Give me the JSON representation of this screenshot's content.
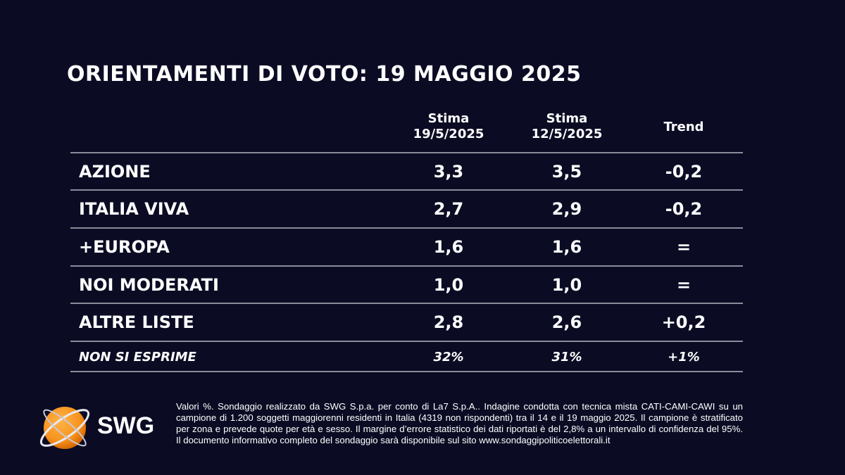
{
  "title": "ORIENTAMENTI DI VOTO: 19 MAGGIO 2025",
  "columns": [
    {
      "line1": "Stima",
      "line2": "19/5/2025"
    },
    {
      "line1": "Stima",
      "line2": "12/5/2025"
    },
    {
      "line1": "Trend",
      "line2": ""
    }
  ],
  "rows": [
    {
      "party": "AZIONE",
      "current": "3,3",
      "previous": "3,5",
      "trend": "-0,2"
    },
    {
      "party": "ITALIA VIVA",
      "current": "2,7",
      "previous": "2,9",
      "trend": "-0,2"
    },
    {
      "party": "+EUROPA",
      "current": "1,6",
      "previous": "1,6",
      "trend": "="
    },
    {
      "party": "NOI MODERATI",
      "current": "1,0",
      "previous": "1,0",
      "trend": "="
    },
    {
      "party": "ALTRE LISTE",
      "current": "2,8",
      "previous": "2,6",
      "trend": "+0,2"
    },
    {
      "party": "NON SI ESPRIME",
      "current": "32%",
      "previous": "31%",
      "trend": "+1%"
    }
  ],
  "logo": {
    "text": "SWG",
    "color": "#f7931e"
  },
  "footnote": "Valori %. Sondaggio realizzato da SWG S.p.a. per conto di La7 S.p.A.. Indagine condotta con tecnica mista CATI-CAMI-CAWI su un campione di 1.200 soggetti maggiorenni residenti in Italia (4319 non rispondenti) tra il 14 e il 19 maggio 2025. Il campione è stratificato per zona e prevede quote per età e sesso. Il margine d’errore statistico dei dati riportati è del 2,8% a un intervallo di confidenza del 95%. Il documento informativo completo del sondaggio sarà disponibile sul sito www.sondaggipoliticoelettorali.it"
}
